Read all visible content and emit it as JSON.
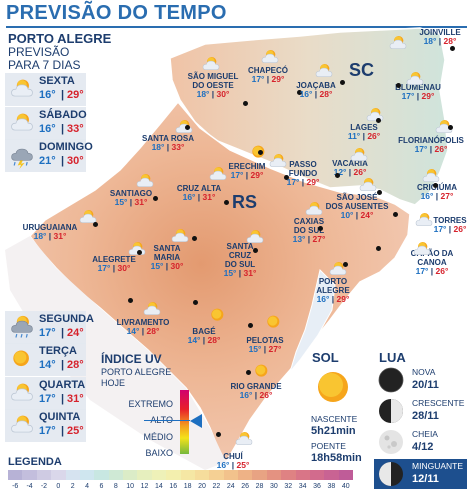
{
  "title": "PREVISÃO DO TEMPO",
  "poa_panel": {
    "city": "PORTO ALEGRE",
    "sub1": "PREVISÃO",
    "sub2": "PARA 7 DIAS",
    "days": [
      {
        "day": "SEXTA",
        "min": "16°",
        "max": "29°",
        "icon": "partly-cloudy-icon"
      },
      {
        "day": "SÁBADO",
        "min": "16°",
        "max": "33°",
        "icon": "sun-cloud-icon"
      },
      {
        "day": "DOMINGO",
        "min": "21°",
        "max": "30°",
        "icon": "storm-icon"
      },
      {
        "day": "SEGUNDA",
        "min": "17°",
        "max": "24°",
        "icon": "rain-icon"
      },
      {
        "day": "TERÇA",
        "min": "14°",
        "max": "28°",
        "icon": "sun-icon"
      },
      {
        "day": "QUARTA",
        "min": "17°",
        "max": "31°",
        "icon": "sun-cloud-icon"
      },
      {
        "day": "QUINTA",
        "min": "17°",
        "max": "25°",
        "icon": "sun-cloud-icon"
      }
    ]
  },
  "states": {
    "rs": "RS",
    "sc": "SC"
  },
  "cities": [
    {
      "name": "SÃO MIGUEL DO OESTE",
      "lines": [
        "SÃO MIGUEL",
        "DO OESTE"
      ],
      "min": "18°",
      "max": "30°"
    },
    {
      "name": "CHAPECÓ",
      "lines": [
        "CHAPECÓ"
      ],
      "min": "17°",
      "max": "29°"
    },
    {
      "name": "JOAÇABA",
      "lines": [
        "JOAÇABA"
      ],
      "min": "16°",
      "max": "28°"
    },
    {
      "name": "JOINVILLE",
      "lines": [
        "JOINVILLE"
      ],
      "min": "18°",
      "max": "28°"
    },
    {
      "name": "BLUMENAU",
      "lines": [
        "BLUMENAU"
      ],
      "min": "17°",
      "max": "29°"
    },
    {
      "name": "LAGES",
      "lines": [
        "LAGES"
      ],
      "min": "11°",
      "max": "26°"
    },
    {
      "name": "FLORIANÓPOLIS",
      "lines": [
        "FLORIANÓPOLIS"
      ],
      "min": "17°",
      "max": "26°"
    },
    {
      "name": "SANTA ROSA",
      "lines": [
        "SANTA ROSA"
      ],
      "min": "18°",
      "max": "33°"
    },
    {
      "name": "ERECHIM",
      "lines": [
        "ERECHIM"
      ],
      "min": "17°",
      "max": "29°"
    },
    {
      "name": "PASSO FUNDO",
      "lines": [
        "PASSO",
        "FUNDO"
      ],
      "min": "17°",
      "max": "29°"
    },
    {
      "name": "VACARIA",
      "lines": [
        "VACARIA"
      ],
      "min": "12°",
      "max": "26°"
    },
    {
      "name": "CRICIÚMA",
      "lines": [
        "CRICIÚMA"
      ],
      "min": "16°",
      "max": "27°"
    },
    {
      "name": "SÃO JOSÉ DOS AUSENTES",
      "lines": [
        "SÃO JOSÉ",
        "DOS AUSENTES"
      ],
      "min": "10°",
      "max": "24°"
    },
    {
      "name": "SANTIAGO",
      "lines": [
        "SANTIAGO"
      ],
      "min": "15°",
      "max": "31°"
    },
    {
      "name": "CRUZ ALTA",
      "lines": [
        "CRUZ ALTA"
      ],
      "min": "16°",
      "max": "31°"
    },
    {
      "name": "CAXIAS DO SUL",
      "lines": [
        "CAXIAS",
        "DO SUL"
      ],
      "min": "13°",
      "max": "27°"
    },
    {
      "name": "TORRES",
      "lines": [
        "TORRES"
      ],
      "min": "17°",
      "max": "26°"
    },
    {
      "name": "URUGUAIANA",
      "lines": [
        "URUGUAIANA"
      ],
      "min": "18°",
      "max": "31°"
    },
    {
      "name": "SANTA MARIA",
      "lines": [
        "SANTA",
        "MARIA"
      ],
      "min": "15°",
      "max": "30°"
    },
    {
      "name": "SANTA CRUZ DO SUL",
      "lines": [
        "SANTA",
        "CRUZ",
        "DO SUL"
      ],
      "min": "15°",
      "max": "31°"
    },
    {
      "name": "CAPÃO DA CANOA",
      "lines": [
        "CAPÃO DA",
        "CANOA"
      ],
      "min": "17°",
      "max": "26°"
    },
    {
      "name": "ALEGRETE",
      "lines": [
        "ALEGRETE"
      ],
      "min": "17°",
      "max": "30°"
    },
    {
      "name": "PORTO ALEGRE",
      "lines": [
        "PORTO",
        "ALEGRE"
      ],
      "min": "16°",
      "max": "29°"
    },
    {
      "name": "LIVRAMENTO",
      "lines": [
        "LIVRAMENTO"
      ],
      "min": "14°",
      "max": "28°"
    },
    {
      "name": "BAGÉ",
      "lines": [
        "BAGÉ"
      ],
      "min": "14°",
      "max": "28°"
    },
    {
      "name": "PELOTAS",
      "lines": [
        "PELOTAS"
      ],
      "min": "15°",
      "max": "27°"
    },
    {
      "name": "RIO GRANDE",
      "lines": [
        "RIO GRANDE"
      ],
      "min": "16°",
      "max": "26°"
    },
    {
      "name": "CHUÍ",
      "lines": [
        "CHUÍ"
      ],
      "min": "16°",
      "max": "25°"
    }
  ],
  "uv": {
    "title": "ÍNDICE UV",
    "sub1": "PORTO ALEGRE",
    "sub2": "HOJE",
    "levels": [
      "EXTREMO",
      "ALTO",
      "MÉDIO",
      "BAIXO"
    ],
    "current": "ALTO"
  },
  "sun": {
    "title": "SOL",
    "rise_label": "NASCENTE",
    "rise": "5h21min",
    "set_label": "POENTE",
    "set": "18h58min"
  },
  "moon": {
    "title": "LUA",
    "phases": [
      {
        "name": "NOVA",
        "date": "20/11",
        "icon": "new-moon-icon"
      },
      {
        "name": "CRESCENTE",
        "date": "28/11",
        "icon": "first-quarter-icon"
      },
      {
        "name": "CHEIA",
        "date": "4/12",
        "icon": "full-moon-icon"
      },
      {
        "name": "MINGUANTE",
        "date": "12/11",
        "icon": "last-quarter-icon",
        "active": true
      }
    ]
  },
  "legend": {
    "title": "LEGENDA",
    "ticks": [
      "-6",
      "-4",
      "-2",
      "0",
      "2",
      "4",
      "6",
      "8",
      "10",
      "12",
      "14",
      "16",
      "18",
      "20",
      "22",
      "24",
      "26",
      "28",
      "30",
      "32",
      "34",
      "36",
      "38",
      "40"
    ],
    "colors": [
      "#b7b2d6",
      "#c3bedd",
      "#cfcbe3",
      "#dad7ea",
      "#d6e3f0",
      "#cfe6ef",
      "#c8e7e2",
      "#cfe9d5",
      "#dbecc7",
      "#e6efbe",
      "#eef1b8",
      "#f3efae",
      "#f5e7a4",
      "#f6dd9c",
      "#f5d094",
      "#f2c28c",
      "#eeb286",
      "#e8a383",
      "#e49281",
      "#df8283",
      "#d97587",
      "#d26b8d",
      "#c96393",
      "#bf5c98"
    ],
    "accent": "#2a6db0"
  }
}
